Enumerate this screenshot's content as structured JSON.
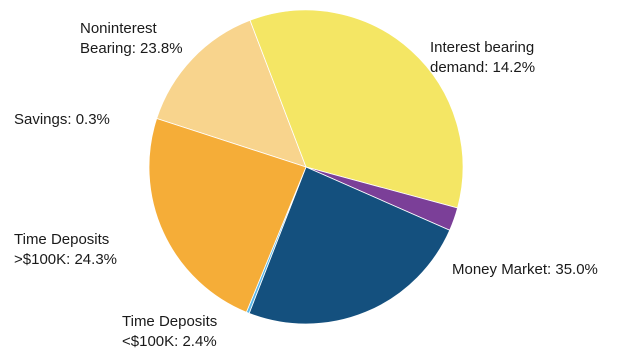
{
  "chart_data": {
    "type": "pie",
    "title": "",
    "slices": [
      {
        "label": "Interest bearing demand",
        "label_lines": [
          "Interest bearing",
          "demand: 14.2%"
        ],
        "value": 14.2,
        "color": "#f8d48d"
      },
      {
        "label": "Money Market",
        "label_lines": [
          "Money Market: 35.0%"
        ],
        "value": 35.0,
        "color": "#f4e664"
      },
      {
        "label": "Time Deposits <$100K",
        "label_lines": [
          "Time Deposits",
          "<$100K: 2.4%"
        ],
        "value": 2.4,
        "color": "#7b3f98"
      },
      {
        "label": "Time Deposits >$100K",
        "label_lines": [
          "Time Deposits",
          ">$100K: 24.3%"
        ],
        "value": 24.3,
        "color": "#14507e"
      },
      {
        "label": "Savings",
        "label_lines": [
          "Savings: 0.3%"
        ],
        "value": 0.3,
        "color": "#5ab8e8"
      },
      {
        "label": "Noninterest Bearing",
        "label_lines": [
          "Noninterest",
          "Bearing: 23.8%"
        ],
        "value": 23.8,
        "color": "#f5ad38"
      }
    ]
  }
}
